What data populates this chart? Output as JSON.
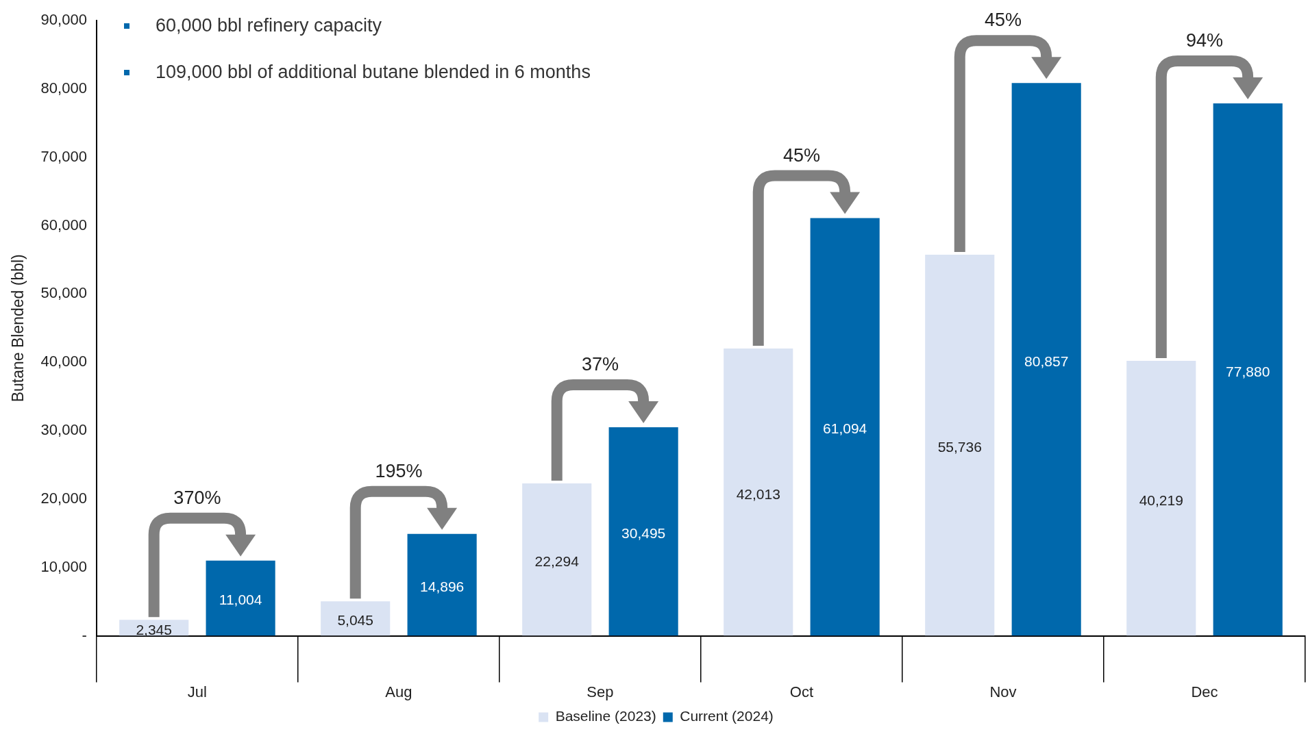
{
  "chart_data": {
    "type": "bar",
    "ylabel": "Butane Blended (bbl)",
    "categories": [
      "Jul",
      "Aug",
      "Sep",
      "Oct",
      "Nov",
      "Dec"
    ],
    "series": [
      {
        "name": "Baseline (2023)",
        "color": "#dae3f3",
        "values": [
          2345,
          5045,
          22294,
          42013,
          55736,
          40219
        ],
        "value_labels": [
          "2,345",
          "5,045",
          "22,294",
          "42,013",
          "55,736",
          "40,219"
        ]
      },
      {
        "name": "Current (2024)",
        "color": "#0068ac",
        "values": [
          11004,
          14896,
          30495,
          61094,
          80857,
          77880
        ],
        "value_labels": [
          "11,004",
          "14,896",
          "30,495",
          "61,094",
          "80,857",
          "77,880"
        ]
      }
    ],
    "ylim": [
      0,
      90000
    ],
    "yticks": [
      {
        "value": 0,
        "label": "-"
      },
      {
        "value": 10000,
        "label": "10,000"
      },
      {
        "value": 20000,
        "label": "20,000"
      },
      {
        "value": 30000,
        "label": "30,000"
      },
      {
        "value": 40000,
        "label": "40,000"
      },
      {
        "value": 50000,
        "label": "50,000"
      },
      {
        "value": 60000,
        "label": "60,000"
      },
      {
        "value": 70000,
        "label": "70,000"
      },
      {
        "value": 80000,
        "label": "80,000"
      },
      {
        "value": 90000,
        "label": "90,000"
      }
    ],
    "grid": false,
    "legend": "bottom",
    "annotations": [
      "60,000 bbl refinery capacity",
      "109,000 bbl of additional butane blended in 6 months",
      "370%",
      "195%",
      "37%",
      "45%",
      "45%",
      "94%"
    ]
  }
}
